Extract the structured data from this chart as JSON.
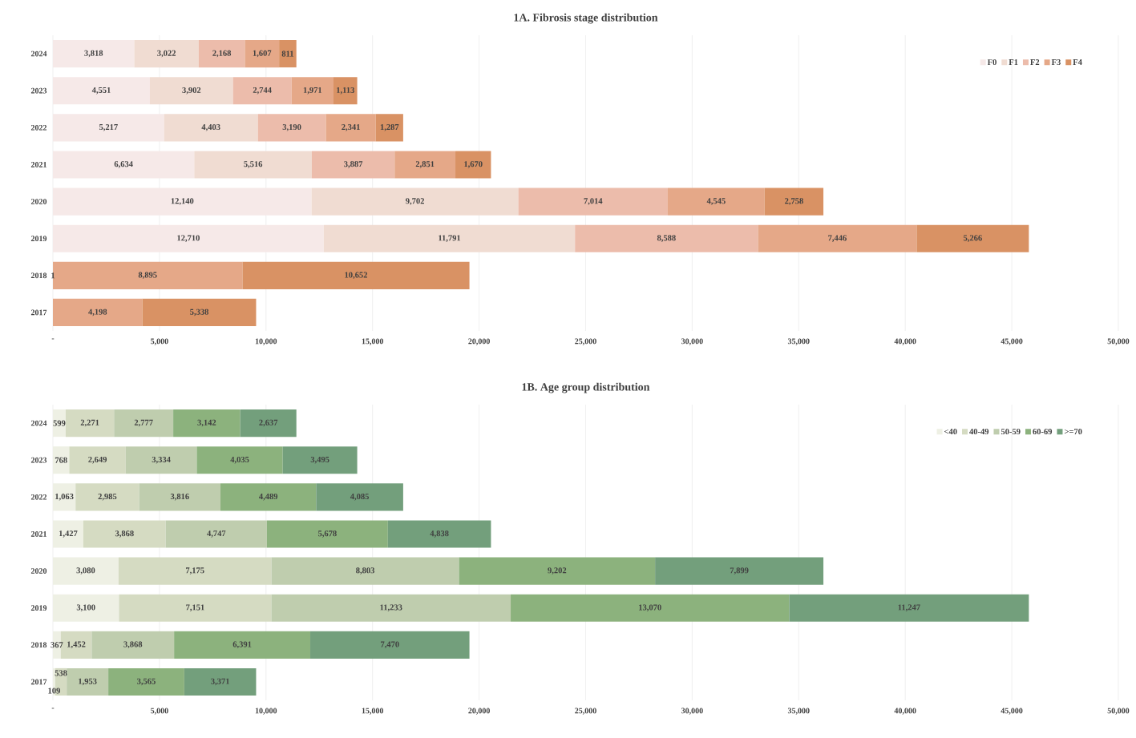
{
  "chart_data": [
    {
      "type": "bar",
      "orientation": "horizontal",
      "stacked": true,
      "title": "1A. Fibrosis stage distribution",
      "categories": [
        "2024",
        "2023",
        "2022",
        "2021",
        "2020",
        "2019",
        "2018",
        "2017"
      ],
      "series": [
        {
          "name": "F0",
          "color": "#f6e9e8",
          "values": [
            3818,
            4551,
            5217,
            6634,
            12140,
            12710,
            null,
            null
          ],
          "value_labels": [
            "3,818",
            "4,551",
            "5,217",
            "6,634",
            "12,140",
            "12,710",
            null,
            null
          ]
        },
        {
          "name": "F1",
          "color": "#f0dcd2",
          "values": [
            3022,
            3902,
            4403,
            5516,
            9702,
            11791,
            null,
            null
          ],
          "value_labels": [
            "3,022",
            "3,902",
            "4,403",
            "5,516",
            "9,702",
            "11,791",
            null,
            null
          ]
        },
        {
          "name": "F2",
          "color": "#ecbcab",
          "values": [
            2168,
            2744,
            3190,
            3887,
            7014,
            8588,
            1,
            null
          ],
          "value_labels": [
            "2,168",
            "2,744",
            "3,190",
            "3,887",
            "7,014",
            "8,588",
            "1",
            null
          ]
        },
        {
          "name": "F3",
          "color": "#e5a888",
          "values": [
            1607,
            1971,
            2341,
            2851,
            4545,
            7446,
            8895,
            4198
          ],
          "value_labels": [
            "1,607",
            "1,971",
            "2,341",
            "2,851",
            "4,545",
            "7,446",
            "8,895",
            "4,198"
          ]
        },
        {
          "name": "F4",
          "color": "#d99264",
          "values": [
            811,
            1113,
            1287,
            1670,
            2758,
            5266,
            10652,
            5338
          ],
          "value_labels": [
            "811",
            "1,113",
            "1,287",
            "1,670",
            "2,758",
            "5,266",
            "10,652",
            "5,338"
          ]
        }
      ],
      "xlim": [
        0,
        50000
      ],
      "xticks": [
        {
          "value": 0,
          "label": "-"
        },
        {
          "value": 5000,
          "label": "5,000"
        },
        {
          "value": 10000,
          "label": "10,000"
        },
        {
          "value": 15000,
          "label": "15,000"
        },
        {
          "value": 20000,
          "label": "20,000"
        },
        {
          "value": 25000,
          "label": "25,000"
        },
        {
          "value": 30000,
          "label": "30,000"
        },
        {
          "value": 35000,
          "label": "35,000"
        },
        {
          "value": 40000,
          "label": "40,000"
        },
        {
          "value": 45000,
          "label": "45,000"
        },
        {
          "value": 50000,
          "label": "50,000"
        }
      ],
      "grid": "x",
      "legend": "top right"
    },
    {
      "type": "bar",
      "orientation": "horizontal",
      "stacked": true,
      "title": "1B. Age group distribution",
      "categories": [
        "2024",
        "2023",
        "2022",
        "2021",
        "2020",
        "2019",
        "2018",
        "2017"
      ],
      "series": [
        {
          "name": "<40",
          "color": "#eef0e4",
          "values": [
            599,
            768,
            1063,
            1427,
            3080,
            3100,
            367,
            109
          ],
          "value_labels": [
            "599",
            "768",
            "1,063",
            "1,427",
            "3,080",
            "3,100",
            "367",
            "109"
          ]
        },
        {
          "name": "40-49",
          "color": "#d5dbc2",
          "values": [
            2271,
            2649,
            2985,
            3868,
            7175,
            7151,
            1452,
            538
          ],
          "value_labels": [
            "2,271",
            "2,649",
            "2,985",
            "3,868",
            "7,175",
            "7,151",
            "1,452",
            "538"
          ]
        },
        {
          "name": "50-59",
          "color": "#bfcdae",
          "values": [
            2777,
            3334,
            3816,
            4747,
            8803,
            11233,
            3868,
            1953
          ],
          "value_labels": [
            "2,777",
            "3,334",
            "3,816",
            "4,747",
            "8,803",
            "11,233",
            "3,868",
            "1,953"
          ]
        },
        {
          "name": "60-69",
          "color": "#8cb27d",
          "values": [
            3142,
            4035,
            4489,
            5678,
            9202,
            13070,
            6391,
            3565
          ],
          "value_labels": [
            "3,142",
            "4,035",
            "4,489",
            "5,678",
            "9,202",
            "13,070",
            "6,391",
            "3,565"
          ]
        },
        {
          "name": ">=70",
          "color": "#739f7c",
          "values": [
            2637,
            3495,
            4085,
            4838,
            7899,
            11247,
            7470,
            3371
          ],
          "value_labels": [
            "2,637",
            "3,495",
            "4,085",
            "4,838",
            "7,899",
            "11,247",
            "7,470",
            "3,371"
          ]
        }
      ],
      "xlim": [
        0,
        50000
      ],
      "xticks": [
        {
          "value": 0,
          "label": "-"
        },
        {
          "value": 5000,
          "label": "5,000"
        },
        {
          "value": 10000,
          "label": "10,000"
        },
        {
          "value": 15000,
          "label": "15,000"
        },
        {
          "value": 20000,
          "label": "20,000"
        },
        {
          "value": 25000,
          "label": "25,000"
        },
        {
          "value": 30000,
          "label": "30,000"
        },
        {
          "value": 35000,
          "label": "35,000"
        },
        {
          "value": 40000,
          "label": "40,000"
        },
        {
          "value": 45000,
          "label": "45,000"
        },
        {
          "value": 50000,
          "label": "50,000"
        }
      ],
      "grid": "x",
      "legend": "top right"
    }
  ]
}
